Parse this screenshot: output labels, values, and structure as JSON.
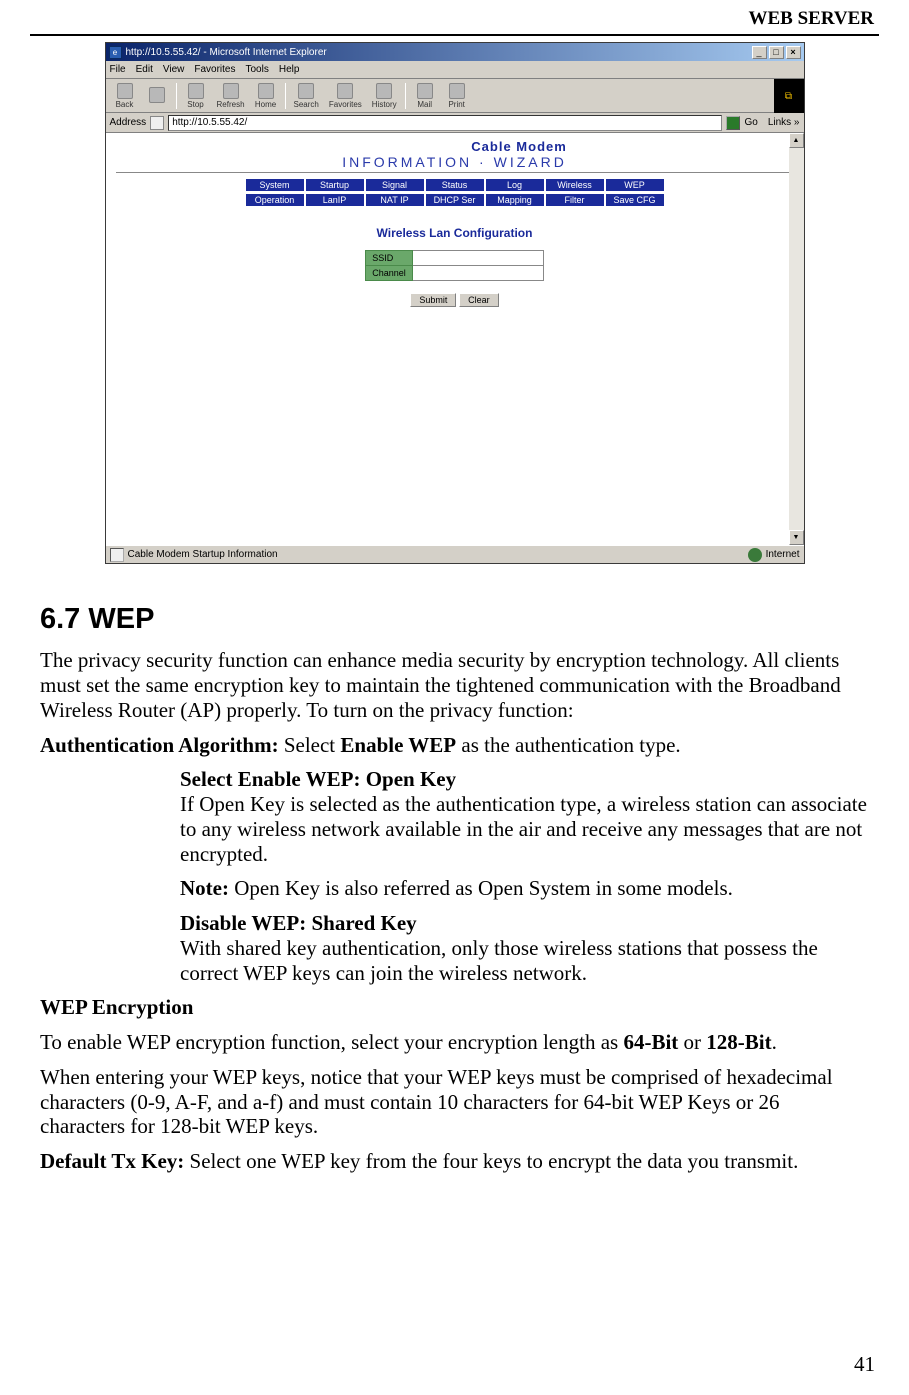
{
  "header": {
    "right": "WEB SERVER"
  },
  "browser": {
    "title": "http://10.5.55.42/ - Microsoft Internet Explorer",
    "menus": [
      "File",
      "Edit",
      "View",
      "Favorites",
      "Tools",
      "Help"
    ],
    "toolbar": [
      "Back",
      "",
      "Stop",
      "Refresh",
      "Home",
      "Search",
      "Favorites",
      "History",
      "Mail",
      "Print"
    ],
    "address_label": "Address",
    "address_value": "http://10.5.55.42/",
    "go_label": "Go",
    "links_label": "Links »",
    "brand": "Cable Modem",
    "subhead": "INFORMATION · WIZARD",
    "nav_row1": [
      "System",
      "Startup",
      "Signal",
      "Status",
      "Log",
      "Wireless",
      "WEP"
    ],
    "nav_row2": [
      "Operation",
      "LanIP",
      "NAT IP",
      "DHCP Ser",
      "Mapping",
      "Filter",
      "Save CFG"
    ],
    "section_title": "Wireless Lan Configuration",
    "form": {
      "ssid_label": "SSID",
      "ssid_value": "",
      "channel_label": "Channel",
      "channel_value": ""
    },
    "buttons": {
      "submit": "Submit",
      "clear": "Clear"
    },
    "status_text": "Cable Modem Startup Information",
    "status_zone": "Internet"
  },
  "doc": {
    "h2": "6.7 WEP",
    "p1": "The privacy security function can enhance media security by encryption technology. All clients must set the same encryption key to maintain the tightened communication with the Broadband Wireless Router (AP) properly. To turn on the privacy function:",
    "auth_label": "Authentication Algorithm:",
    "auth_rest": " Select ",
    "auth_bold": "Enable WEP",
    "auth_tail": " as the authentication type.",
    "open_title": "Select Enable WEP: Open Key",
    "open_body": "If Open Key is selected as the authentication type, a wireless station can associate to any wireless network available in the air and receive any messages that are not encrypted.",
    "note_label": "Note:",
    "note_body": " Open Key is also referred as Open System in some models.",
    "shared_title": "Disable WEP: Shared Key",
    "shared_body": "With shared key authentication, only those wireless stations that possess the correct WEP keys can join the wireless network.",
    "wepenc_title": "WEP Encryption",
    "wepenc_p1a": "To enable WEP encryption function, select your encryption length as ",
    "wepenc_64": "64-Bit",
    "wepenc_or": " or ",
    "wepenc_128": "128-Bit",
    "wepenc_tail": ".",
    "wepkeys_p": "When entering your WEP keys, notice that your WEP keys must be comprised of hexadecimal characters (0-9, A-F, and a-f) and must contain 10 characters for 64-bit WEP Keys or 26 characters for 128-bit WEP keys.",
    "deftx_label": "Default Tx Key:",
    "deftx_body": " Select one WEP key from the four keys to encrypt the data you transmit."
  },
  "page_number": "41"
}
